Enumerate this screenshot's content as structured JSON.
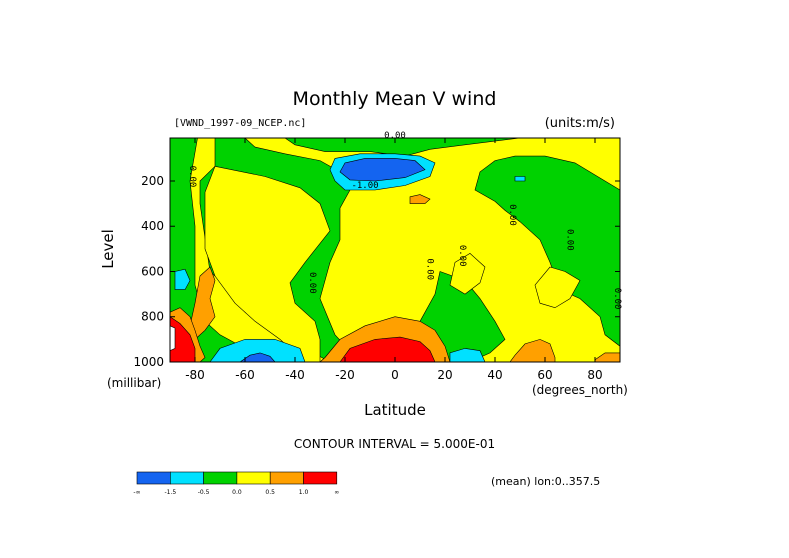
{
  "chart_data": {
    "type": "heatmap",
    "title": "Monthly Mean V wind",
    "source_label": "[VWND_1997-09_NCEP.nc]",
    "units_label": "(units:m/s)",
    "xlabel": "Latitude",
    "x_unit": "(degrees_north)",
    "ylabel": "Level",
    "y_unit": "(millibar)",
    "xlim": [
      -90,
      90
    ],
    "ylim": [
      1000,
      10
    ],
    "x_ticks": [
      "-80",
      "-60",
      "-40",
      "-20",
      "0",
      "20",
      "40",
      "60",
      "80"
    ],
    "y_ticks": [
      "200",
      "400",
      "600",
      "800",
      "1000"
    ],
    "contour_interval_text": "CONTOUR INTERVAL = 5.000E-01",
    "mean_text": "(mean) lon:0..357.5",
    "contour_labels": [
      {
        "text": "0.00",
        "lat": -82,
        "lev": 180
      },
      {
        "text": "-1.00",
        "lat": -12,
        "lev": 230
      },
      {
        "text": "0.00",
        "lat": -34,
        "lev": 650
      },
      {
        "text": "0.00",
        "lat": 13,
        "lev": 590
      },
      {
        "text": "0.00",
        "lat": 26,
        "lev": 530
      },
      {
        "text": "0.00",
        "lat": 46,
        "lev": 350
      },
      {
        "text": "0.00",
        "lat": 69,
        "lev": 460
      },
      {
        "text": "0.00",
        "lat": 88,
        "lev": 720
      },
      {
        "text": "0.00",
        "lat": 0,
        "lev": 10
      }
    ],
    "colorbar": {
      "colors": [
        "#1464f0",
        "#00e1ff",
        "#00d200",
        "#ffff00",
        "#ffa000",
        "#ff0000"
      ],
      "labels": [
        "-∞",
        "-1.5",
        "-0.5",
        "0.0",
        "0.5",
        "1.0",
        "∞"
      ]
    },
    "regions": [
      {
        "color": "#00d200",
        "points": [
          [
            -90,
            10
          ],
          [
            90,
            10
          ],
          [
            90,
            1000
          ],
          [
            -90,
            1000
          ]
        ]
      },
      {
        "color": "#ffff00",
        "points": [
          [
            -79,
            10
          ],
          [
            -72,
            10
          ],
          [
            -72,
            135
          ],
          [
            -78,
            200
          ],
          [
            -78,
            300
          ],
          [
            -74,
            600
          ],
          [
            -66,
            680
          ],
          [
            -60,
            780
          ],
          [
            -50,
            860
          ],
          [
            -36,
            940
          ],
          [
            -26,
            1000
          ],
          [
            -42,
            1000
          ],
          [
            -60,
            940
          ],
          [
            -70,
            880
          ],
          [
            -76,
            820
          ],
          [
            -80,
            660
          ],
          [
            -80,
            400
          ],
          [
            -82,
            200
          ]
        ]
      },
      {
        "color": "#ffff00",
        "points": [
          [
            -72,
            135
          ],
          [
            -52,
            180
          ],
          [
            -38,
            230
          ],
          [
            -30,
            300
          ],
          [
            -26,
            420
          ],
          [
            -36,
            560
          ],
          [
            -42,
            650
          ],
          [
            -40,
            740
          ],
          [
            -32,
            820
          ],
          [
            -30,
            900
          ],
          [
            -30,
            1000
          ],
          [
            -36,
            1000
          ],
          [
            -46,
            900
          ],
          [
            -56,
            820
          ],
          [
            -64,
            740
          ],
          [
            -72,
            620
          ],
          [
            -76,
            500
          ],
          [
            -76,
            250
          ]
        ]
      },
      {
        "color": "#ffff00",
        "points": [
          [
            -60,
            10
          ],
          [
            -44,
            10
          ],
          [
            -40,
            40
          ],
          [
            -28,
            70
          ],
          [
            -10,
            70
          ],
          [
            4,
            90
          ],
          [
            14,
            60
          ],
          [
            28,
            40
          ],
          [
            50,
            10
          ],
          [
            90,
            10
          ],
          [
            90,
            240
          ],
          [
            84,
            200
          ],
          [
            72,
            120
          ],
          [
            60,
            90
          ],
          [
            48,
            90
          ],
          [
            40,
            110
          ],
          [
            34,
            160
          ],
          [
            32,
            240
          ],
          [
            40,
            290
          ],
          [
            44,
            330
          ],
          [
            50,
            380
          ],
          [
            58,
            460
          ],
          [
            62,
            560
          ],
          [
            66,
            680
          ],
          [
            74,
            720
          ],
          [
            82,
            800
          ],
          [
            84,
            880
          ],
          [
            90,
            930
          ],
          [
            90,
            1000
          ],
          [
            30,
            1000
          ],
          [
            38,
            960
          ],
          [
            44,
            900
          ],
          [
            40,
            820
          ],
          [
            34,
            720
          ],
          [
            28,
            640
          ],
          [
            18,
            600
          ],
          [
            16,
            700
          ],
          [
            10,
            820
          ],
          [
            6,
            900
          ],
          [
            -4,
            1000
          ],
          [
            -14,
            1000
          ],
          [
            -24,
            880
          ],
          [
            -30,
            720
          ],
          [
            -26,
            560
          ],
          [
            -22,
            460
          ],
          [
            -22,
            320
          ],
          [
            -18,
            240
          ],
          [
            -22,
            160
          ],
          [
            -30,
            110
          ],
          [
            -44,
            80
          ],
          [
            -56,
            50
          ]
        ]
      },
      {
        "color": "#ffff00",
        "points": [
          [
            62,
            580
          ],
          [
            68,
            600
          ],
          [
            74,
            640
          ],
          [
            70,
            720
          ],
          [
            64,
            760
          ],
          [
            58,
            740
          ],
          [
            56,
            660
          ]
        ]
      },
      {
        "color": "#ffff00",
        "points": [
          [
            24,
            560
          ],
          [
            30,
            520
          ],
          [
            36,
            580
          ],
          [
            34,
            650
          ],
          [
            28,
            700
          ],
          [
            22,
            660
          ]
        ]
      },
      {
        "color": "#ffa000",
        "points": [
          [
            -78,
            620
          ],
          [
            -74,
            580
          ],
          [
            -72,
            640
          ],
          [
            -74,
            720
          ],
          [
            -72,
            800
          ],
          [
            -76,
            860
          ],
          [
            -80,
            900
          ],
          [
            -82,
            840
          ],
          [
            -80,
            740
          ]
        ]
      },
      {
        "color": "#ffa000",
        "points": [
          [
            -86,
            760
          ],
          [
            -82,
            800
          ],
          [
            -80,
            860
          ],
          [
            -78,
            930
          ],
          [
            -76,
            980
          ],
          [
            -78,
            1000
          ],
          [
            -90,
            1000
          ],
          [
            -90,
            780
          ]
        ]
      },
      {
        "color": "#ff0000",
        "points": [
          [
            -90,
            800
          ],
          [
            -86,
            830
          ],
          [
            -82,
            880
          ],
          [
            -80,
            940
          ],
          [
            -80,
            1000
          ],
          [
            -90,
            1000
          ]
        ]
      },
      {
        "color": "#ffffff",
        "points": [
          [
            -90,
            840
          ],
          [
            -88,
            850
          ],
          [
            -88,
            940
          ],
          [
            -90,
            950
          ]
        ]
      },
      {
        "color": "#ffa000",
        "points": [
          [
            -28,
            980
          ],
          [
            -22,
            900
          ],
          [
            -12,
            840
          ],
          [
            0,
            800
          ],
          [
            10,
            820
          ],
          [
            16,
            860
          ],
          [
            20,
            930
          ],
          [
            22,
            1000
          ],
          [
            -30,
            1000
          ]
        ]
      },
      {
        "color": "#ff0000",
        "points": [
          [
            -22,
            1000
          ],
          [
            -18,
            940
          ],
          [
            -8,
            900
          ],
          [
            2,
            890
          ],
          [
            10,
            910
          ],
          [
            14,
            950
          ],
          [
            16,
            1000
          ]
        ]
      },
      {
        "color": "#ffa000",
        "points": [
          [
            6,
            270
          ],
          [
            10,
            260
          ],
          [
            14,
            280
          ],
          [
            12,
            300
          ],
          [
            6,
            300
          ]
        ]
      },
      {
        "color": "#ffa000",
        "points": [
          [
            48,
            970
          ],
          [
            52,
            920
          ],
          [
            58,
            900
          ],
          [
            62,
            920
          ],
          [
            64,
            980
          ],
          [
            64,
            1000
          ],
          [
            46,
            1000
          ]
        ]
      },
      {
        "color": "#ffa000",
        "points": [
          [
            80,
            990
          ],
          [
            84,
            960
          ],
          [
            90,
            960
          ],
          [
            90,
            1000
          ],
          [
            80,
            1000
          ]
        ]
      },
      {
        "color": "#00e1ff",
        "points": [
          [
            -24,
            100
          ],
          [
            -14,
            80
          ],
          [
            0,
            80
          ],
          [
            10,
            90
          ],
          [
            16,
            120
          ],
          [
            14,
            180
          ],
          [
            4,
            220
          ],
          [
            -8,
            240
          ],
          [
            -20,
            240
          ],
          [
            -24,
            200
          ],
          [
            -26,
            150
          ]
        ]
      },
      {
        "color": "#1464f0",
        "points": [
          [
            -20,
            120
          ],
          [
            -12,
            100
          ],
          [
            0,
            100
          ],
          [
            8,
            110
          ],
          [
            12,
            150
          ],
          [
            4,
            185
          ],
          [
            -8,
            200
          ],
          [
            -18,
            195
          ],
          [
            -22,
            160
          ]
        ]
      },
      {
        "color": "#00e1ff",
        "points": [
          [
            -74,
            1000
          ],
          [
            -70,
            940
          ],
          [
            -60,
            900
          ],
          [
            -48,
            900
          ],
          [
            -38,
            940
          ],
          [
            -36,
            1000
          ]
        ]
      },
      {
        "color": "#1464f0",
        "points": [
          [
            -62,
            1000
          ],
          [
            -58,
            970
          ],
          [
            -54,
            960
          ],
          [
            -50,
            975
          ],
          [
            -48,
            1000
          ]
        ]
      },
      {
        "color": "#00e1ff",
        "points": [
          [
            22,
            1000
          ],
          [
            22,
            960
          ],
          [
            28,
            940
          ],
          [
            34,
            950
          ],
          [
            36,
            1000
          ]
        ]
      },
      {
        "color": "#00e1ff",
        "points": [
          [
            -88,
            600
          ],
          [
            -84,
            590
          ],
          [
            -82,
            640
          ],
          [
            -84,
            680
          ],
          [
            -88,
            680
          ]
        ]
      },
      {
        "color": "#00e1ff",
        "points": [
          [
            48,
            180
          ],
          [
            52,
            180
          ],
          [
            52,
            200
          ],
          [
            48,
            200
          ]
        ]
      }
    ]
  }
}
